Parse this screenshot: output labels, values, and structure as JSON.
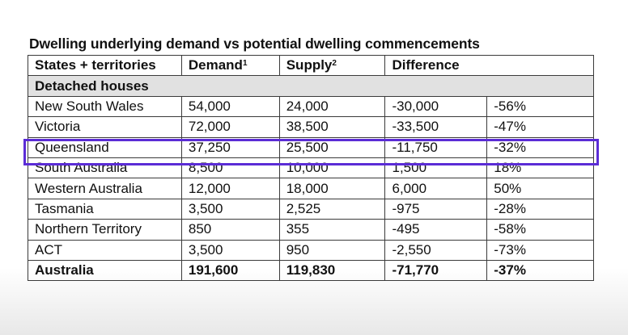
{
  "title": "Dwelling underlying demand vs potential dwelling commencements",
  "headers": {
    "states": "States + territories",
    "demand": "Demand",
    "demand_note": "1",
    "supply": "Supply",
    "supply_note": "2",
    "difference": "Difference"
  },
  "section": "Detached houses",
  "rows": [
    {
      "state": "New South Wales",
      "demand": "54,000",
      "supply": "24,000",
      "difference": "-30,000",
      "percent": "-56%"
    },
    {
      "state": "Victoria",
      "demand": "72,000",
      "supply": "38,500",
      "difference": "-33,500",
      "percent": "-47%"
    },
    {
      "state": "Queensland",
      "demand": "37,250",
      "supply": "25,500",
      "difference": "-11,750",
      "percent": "-32%"
    },
    {
      "state": "South Australia",
      "demand": "8,500",
      "supply": "10,000",
      "difference": "1,500",
      "percent": "18%"
    },
    {
      "state": "Western Australia",
      "demand": "12,000",
      "supply": "18,000",
      "difference": "6,000",
      "percent": "50%"
    },
    {
      "state": "Tasmania",
      "demand": "3,500",
      "supply": "2,525",
      "difference": "-975",
      "percent": "-28%"
    },
    {
      "state": "Northern Territory",
      "demand": "850",
      "supply": "355",
      "difference": "-495",
      "percent": "-58%"
    },
    {
      "state": "ACT",
      "demand": "3,500",
      "supply": "950",
      "difference": "-2,550",
      "percent": "-73%"
    }
  ],
  "total": {
    "state": "Australia",
    "demand": "191,600",
    "supply": "119,830",
    "difference": "-71,770",
    "percent": "-37%"
  },
  "highlight_color": "#5b2cd6"
}
